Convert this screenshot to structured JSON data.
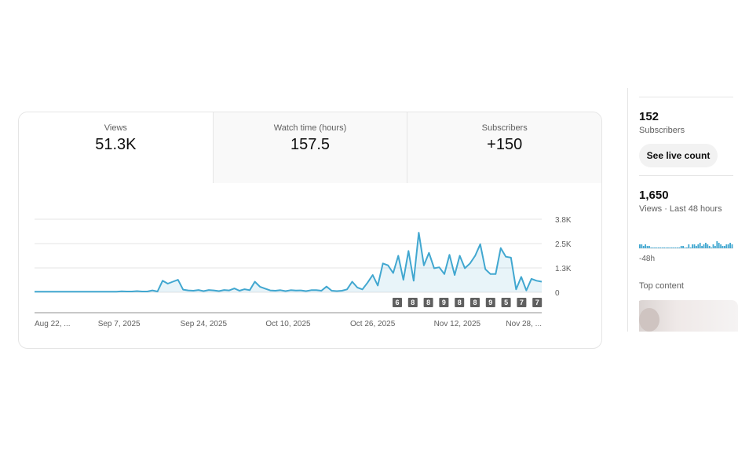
{
  "tabs": [
    {
      "label": "Views",
      "value": "51.3K"
    },
    {
      "label": "Watch time (hours)",
      "value": "157.5"
    },
    {
      "label": "Subscribers",
      "value": "+150"
    }
  ],
  "chart_data": {
    "type": "area",
    "yticks": [
      "3.8K",
      "2.5K",
      "1.3K",
      "0"
    ],
    "ylim": [
      0,
      3800
    ],
    "xticks": [
      "Aug 22, ...",
      "Sep 7, 2025",
      "Sep 24, 2025",
      "Oct 10, 2025",
      "Oct 26, 2025",
      "Nov 12, 2025",
      "Nov 28, ..."
    ],
    "values": [
      30,
      30,
      30,
      30,
      30,
      30,
      30,
      30,
      30,
      30,
      30,
      30,
      30,
      30,
      30,
      30,
      30,
      50,
      40,
      40,
      60,
      40,
      40,
      100,
      40,
      600,
      450,
      550,
      650,
      140,
      100,
      80,
      120,
      60,
      120,
      100,
      60,
      120,
      100,
      200,
      80,
      160,
      110,
      550,
      290,
      190,
      100,
      80,
      110,
      60,
      110,
      90,
      100,
      60,
      110,
      110,
      80,
      300,
      80,
      60,
      80,
      150,
      550,
      250,
      150,
      500,
      900,
      350,
      1500,
      1400,
      1000,
      1900,
      650,
      2150,
      600,
      3100,
      1400,
      2050,
      1250,
      1300,
      950,
      1950,
      900,
      1900,
      1250,
      1500,
      1900,
      2500,
      1200,
      950,
      950,
      2300,
      1850,
      1800,
      150,
      800,
      100,
      700,
      600,
      550
    ],
    "markers": [
      "6",
      "8",
      "8",
      "9",
      "8",
      "8",
      "9",
      "5",
      "7",
      "7"
    ],
    "color": "#41a7d0"
  },
  "realtime": {
    "subscribers_value": "152",
    "subscribers_label": "Subscribers",
    "live_count_button": "See live count",
    "views_value": "1,650",
    "views_label": "Views · Last 48 hours",
    "mini_bars": [
      2,
      2,
      1,
      2,
      1,
      1,
      0,
      0,
      0,
      0,
      0,
      0,
      0,
      0,
      0,
      0,
      0,
      0,
      0,
      0,
      0,
      0,
      1,
      1,
      0,
      0,
      2,
      0,
      2,
      2,
      1,
      2,
      3,
      1,
      2,
      3,
      2,
      1,
      0,
      2,
      1,
      4,
      3,
      2,
      1,
      1,
      2,
      2,
      3,
      2
    ],
    "axis_label": "-48h",
    "top_content_label": "Top content"
  }
}
